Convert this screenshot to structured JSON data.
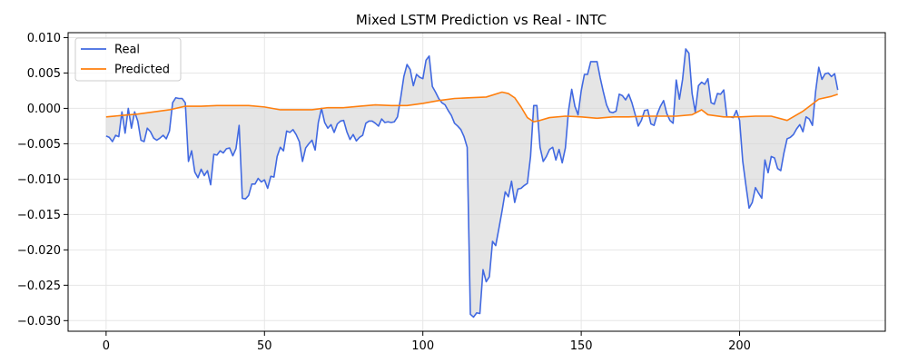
{
  "chart_data": {
    "type": "line",
    "title": "Mixed LSTM Prediction vs Real - INTC",
    "xlabel": "",
    "ylabel": "",
    "xlim": [
      -12,
      246
    ],
    "ylim": [
      -0.0315,
      0.0107
    ],
    "x_ticks": [
      0,
      50,
      100,
      150,
      200
    ],
    "x_tick_labels": [
      "0",
      "50",
      "100",
      "150",
      "200"
    ],
    "y_ticks": [
      0.01,
      0.005,
      0.0,
      -0.005,
      -0.01,
      -0.015,
      -0.02,
      -0.025,
      -0.03
    ],
    "y_tick_labels": [
      "0.010",
      "0.005",
      "0.000",
      "−0.005",
      "−0.010",
      "−0.015",
      "−0.020",
      "−0.025",
      "−0.030"
    ],
    "grid": true,
    "legend_position": "upper-left",
    "fill_between": {
      "color": "#d3d3d3",
      "note": ""
    },
    "series": [
      {
        "name": "Real",
        "color": "#4169e1",
        "x": [
          0,
          1,
          2,
          3,
          4,
          5,
          6,
          7,
          8,
          9,
          10,
          11,
          12,
          13,
          14,
          15,
          16,
          17,
          18,
          19,
          20,
          21,
          22,
          23,
          24,
          25,
          26,
          27,
          28,
          29,
          30,
          31,
          32,
          33,
          34,
          35,
          36,
          37,
          38,
          39,
          40,
          41,
          42,
          43,
          44,
          45,
          46,
          47,
          48,
          49,
          50,
          51,
          52,
          53,
          54,
          55,
          56,
          57,
          58,
          59,
          60,
          61,
          62,
          63,
          64,
          65,
          66,
          67,
          68,
          69,
          70,
          71,
          72,
          73,
          74,
          75,
          76,
          77,
          78,
          79,
          80,
          81,
          82,
          83,
          84,
          85,
          86,
          87,
          88,
          89,
          90,
          91,
          92,
          93,
          94,
          95,
          96,
          97,
          98,
          99,
          100,
          101,
          102,
          103,
          104,
          105,
          106,
          107,
          108,
          109,
          110,
          111,
          112,
          113,
          114,
          115,
          116,
          117,
          118,
          119,
          120,
          121,
          122,
          123,
          124,
          125,
          126,
          127,
          128,
          129,
          130,
          131,
          132,
          133,
          134,
          135,
          136,
          137,
          138,
          139,
          140,
          141,
          142,
          143,
          144,
          145,
          146,
          147,
          148,
          149,
          150,
          151,
          152,
          153,
          154,
          155,
          156,
          157,
          158,
          159,
          160,
          161,
          162,
          163,
          164,
          165,
          166,
          167,
          168,
          169,
          170,
          171,
          172,
          173,
          174,
          175,
          176,
          177,
          178,
          179,
          180,
          181,
          182,
          183,
          184,
          185,
          186,
          187,
          188,
          189,
          190,
          191,
          192,
          193,
          194,
          195,
          196,
          197,
          198,
          199,
          200,
          201,
          202,
          203,
          204,
          205,
          206,
          207,
          208,
          209,
          210,
          211,
          212,
          213,
          214,
          215,
          216,
          217,
          218,
          219,
          220,
          221,
          222,
          223,
          224,
          225,
          226,
          227,
          228,
          229,
          230,
          231
        ],
        "values": [
          -0.0039,
          -0.0041,
          -0.0047,
          -0.0038,
          -0.004,
          -0.0005,
          -0.0035,
          0.0,
          -0.0028,
          -0.0005,
          -0.0018,
          -0.0045,
          -0.0047,
          -0.0028,
          -0.0033,
          -0.0042,
          -0.0045,
          -0.0042,
          -0.0038,
          -0.0043,
          -0.0032,
          0.0008,
          0.0015,
          0.0014,
          0.0014,
          0.0008,
          -0.0075,
          -0.006,
          -0.009,
          -0.0098,
          -0.0086,
          -0.0095,
          -0.0088,
          -0.0108,
          -0.0065,
          -0.0066,
          -0.006,
          -0.0063,
          -0.0057,
          -0.0056,
          -0.0067,
          -0.0057,
          -0.0024,
          -0.0127,
          -0.0128,
          -0.0123,
          -0.0107,
          -0.0107,
          -0.0099,
          -0.0104,
          -0.0101,
          -0.0113,
          -0.0096,
          -0.0097,
          -0.0068,
          -0.0055,
          -0.006,
          -0.0032,
          -0.0034,
          -0.003,
          -0.0037,
          -0.0047,
          -0.0075,
          -0.0056,
          -0.005,
          -0.0045,
          -0.0059,
          -0.002,
          0.0,
          -0.002,
          -0.0028,
          -0.0023,
          -0.0034,
          -0.0022,
          -0.0018,
          -0.0017,
          -0.0033,
          -0.0044,
          -0.0037,
          -0.0046,
          -0.0041,
          -0.0038,
          -0.0021,
          -0.0018,
          -0.0018,
          -0.0021,
          -0.0025,
          -0.0015,
          -0.002,
          -0.0019,
          -0.002,
          -0.0019,
          -0.0012,
          0.0015,
          0.0045,
          0.0062,
          0.0055,
          0.0032,
          0.0048,
          0.0044,
          0.0042,
          0.0068,
          0.0074,
          0.0031,
          0.0023,
          0.0014,
          0.0008,
          0.0005,
          -0.0003,
          -0.001,
          -0.0021,
          -0.0025,
          -0.003,
          -0.004,
          -0.0055,
          -0.0291,
          -0.0295,
          -0.0289,
          -0.029,
          -0.0228,
          -0.0245,
          -0.0238,
          -0.0188,
          -0.0194,
          -0.017,
          -0.0145,
          -0.0118,
          -0.0125,
          -0.0103,
          -0.0133,
          -0.0114,
          -0.0113,
          -0.0109,
          -0.0106,
          -0.0068,
          0.0004,
          0.0004,
          -0.0055,
          -0.0075,
          -0.0068,
          -0.0058,
          -0.0055,
          -0.0073,
          -0.0058,
          -0.0077,
          -0.0056,
          -0.0003,
          0.0027,
          0.0003,
          -0.0009,
          0.0025,
          0.0048,
          0.0048,
          0.0066,
          0.0066,
          0.0066,
          0.0043,
          0.0023,
          0.0005,
          -0.0005,
          -0.0006,
          -0.0004,
          0.002,
          0.0018,
          0.0012,
          0.002,
          0.0008,
          -0.0008,
          -0.0025,
          -0.0017,
          -0.0003,
          -0.0002,
          -0.0022,
          -0.0024,
          -0.0008,
          0.0003,
          0.0011,
          -0.0007,
          -0.0017,
          -0.0021,
          0.004,
          0.0013,
          0.0041,
          0.0084,
          0.0078,
          0.0021,
          -0.0005,
          0.0032,
          0.0037,
          0.0034,
          0.0042,
          0.0008,
          0.0006,
          0.0021,
          0.002,
          0.0026,
          -0.0012,
          -0.0012,
          -0.0013,
          -0.0003,
          -0.0017,
          -0.0075,
          -0.0109,
          -0.0141,
          -0.0133,
          -0.0112,
          -0.012,
          -0.0127,
          -0.0073,
          -0.0091,
          -0.0068,
          -0.007,
          -0.0085,
          -0.0088,
          -0.0063,
          -0.0043,
          -0.0041,
          -0.0037,
          -0.0029,
          -0.0023,
          -0.0033,
          -0.0012,
          -0.0015,
          -0.0024,
          0.0024,
          0.0058,
          0.0041,
          0.0049,
          0.005,
          0.0045,
          0.0049,
          0.0026
        ]
      },
      {
        "name": "Predicted",
        "color": "#ff7f0e",
        "x": [
          0,
          5,
          10,
          15,
          20,
          25,
          30,
          35,
          40,
          45,
          50,
          55,
          60,
          65,
          70,
          75,
          80,
          85,
          90,
          95,
          100,
          105,
          110,
          115,
          120,
          125,
          127,
          129,
          131,
          133,
          135,
          137,
          140,
          145,
          150,
          155,
          160,
          165,
          170,
          175,
          180,
          185,
          188,
          190,
          195,
          200,
          205,
          210,
          215,
          220,
          225,
          229,
          231
        ],
        "values": [
          -0.0012,
          -0.001,
          -0.0008,
          -0.0005,
          -0.0002,
          0.0003,
          0.0003,
          0.0004,
          0.0004,
          0.0004,
          0.0002,
          -0.0002,
          -0.0002,
          -0.0002,
          0.0001,
          0.0001,
          0.0003,
          0.0005,
          0.0004,
          0.0004,
          0.0007,
          0.0011,
          0.0014,
          0.0015,
          0.0016,
          0.0023,
          0.0021,
          0.0015,
          0.0002,
          -0.0013,
          -0.0019,
          -0.0017,
          -0.0013,
          -0.0011,
          -0.0012,
          -0.0014,
          -0.0012,
          -0.0012,
          -0.0011,
          -0.0011,
          -0.0011,
          -0.0009,
          -0.0002,
          -0.0009,
          -0.0012,
          -0.0012,
          -0.0011,
          -0.0011,
          -0.0017,
          -0.0004,
          0.0013,
          0.0017,
          0.002
        ]
      }
    ]
  }
}
